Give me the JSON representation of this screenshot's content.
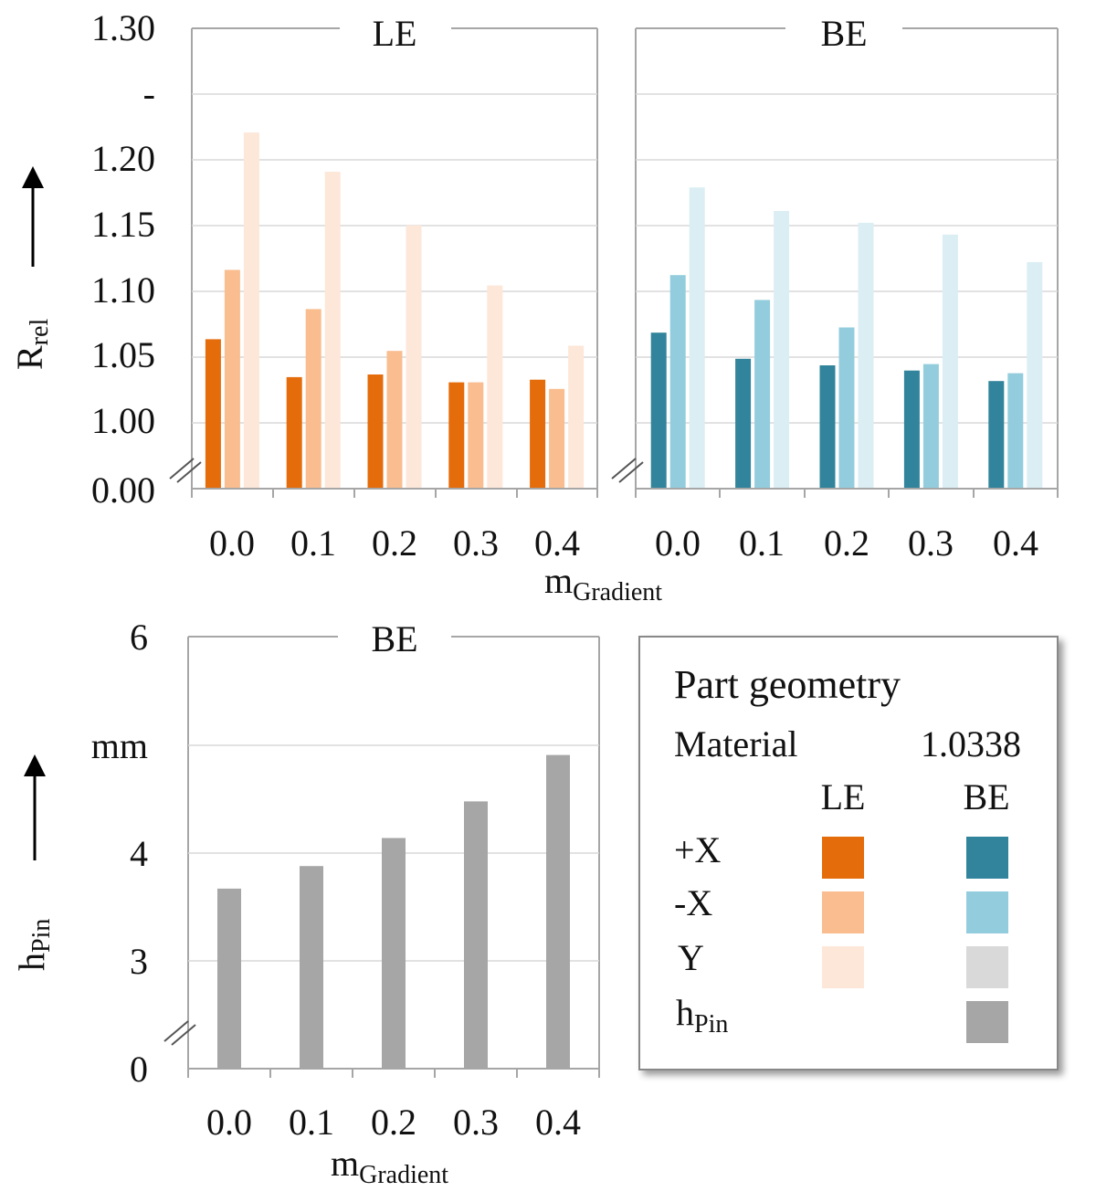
{
  "colors": {
    "le_px": "#e46c0a",
    "le_mx": "#f9bd8f",
    "le_y": "#fde7d8",
    "be_px": "#31849b",
    "be_mx": "#93cddd",
    "be_y": "#dbeef3",
    "be_y_legend": "#d9d9d9",
    "hpin": "#a6a6a6",
    "grid": "#d9d9d9",
    "frame": "#a6a6a6"
  },
  "top": {
    "y_ticks": [
      "1.30",
      "-",
      "1.20",
      "1.15",
      "1.10",
      "1.05",
      "1.00",
      "0.00"
    ],
    "y_label_main": "R",
    "y_label_sub": "rel",
    "x_label_main": "m",
    "x_label_sub": "Gradient"
  },
  "bottom": {
    "y_ticks": [
      "6",
      "mm",
      "4",
      "3",
      "0"
    ],
    "y_label_main": "h",
    "y_label_sub": "Pin",
    "x_label_main": "m",
    "x_label_sub": "Gradient"
  },
  "legend": {
    "title": "Part geometry",
    "material_label": "Material",
    "material_value": "1.0338",
    "col_le": "LE",
    "col_be": "BE",
    "row_px": "+X",
    "row_mx": "-X",
    "row_y": "Y",
    "row_h_main": "h",
    "row_h_sub": "Pin"
  },
  "chart_data": [
    {
      "type": "bar",
      "title": "LE",
      "xlabel": "m_Gradient",
      "ylabel": "R_rel",
      "categories": [
        "0.0",
        "0.1",
        "0.2",
        "0.3",
        "0.4"
      ],
      "ylim": [
        1.0,
        1.3
      ],
      "axis_break": true,
      "grid": true,
      "series": [
        {
          "name": "+X",
          "values": [
            1.064,
            1.035,
            1.037,
            1.031,
            1.033
          ]
        },
        {
          "name": "-X",
          "values": [
            1.117,
            1.087,
            1.055,
            1.031,
            1.026
          ]
        },
        {
          "name": "Y",
          "values": [
            1.222,
            1.192,
            1.151,
            1.105,
            1.059
          ]
        }
      ]
    },
    {
      "type": "bar",
      "title": "BE",
      "xlabel": "m_Gradient",
      "ylabel": "R_rel",
      "categories": [
        "0.0",
        "0.1",
        "0.2",
        "0.3",
        "0.4"
      ],
      "ylim": [
        1.0,
        1.3
      ],
      "axis_break": true,
      "grid": true,
      "series": [
        {
          "name": "+X",
          "values": [
            1.069,
            1.049,
            1.044,
            1.04,
            1.032
          ]
        },
        {
          "name": "-X",
          "values": [
            1.113,
            1.094,
            1.073,
            1.045,
            1.038
          ]
        },
        {
          "name": "Y",
          "values": [
            1.18,
            1.162,
            1.153,
            1.144,
            1.123
          ]
        }
      ]
    },
    {
      "type": "bar",
      "title": "BE",
      "xlabel": "m_Gradient",
      "ylabel": "h_Pin",
      "categories": [
        "0.0",
        "0.1",
        "0.2",
        "0.3",
        "0.4"
      ],
      "ylim": [
        3,
        6
      ],
      "axis_break": true,
      "grid": true,
      "series": [
        {
          "name": "h_Pin",
          "values": [
            3.67,
            3.88,
            4.14,
            4.48,
            4.91
          ]
        }
      ]
    }
  ]
}
